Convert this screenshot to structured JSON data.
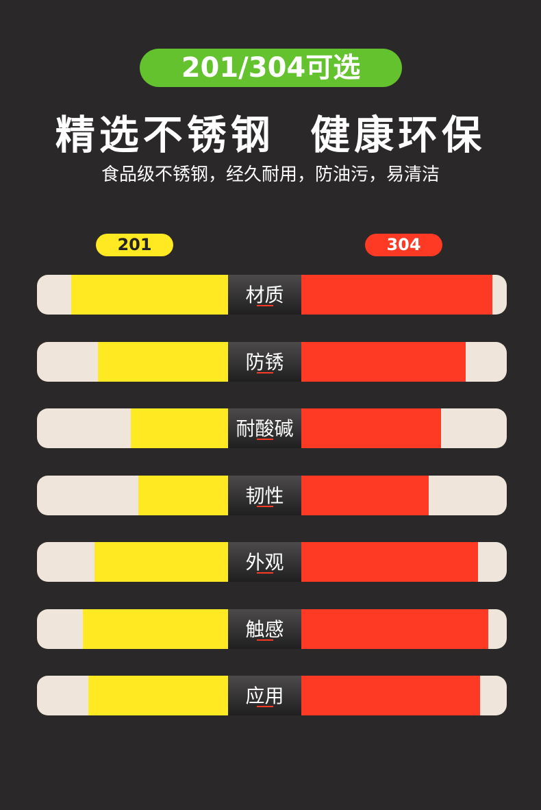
{
  "header": {
    "badge": "201/304可选",
    "title": "精选不锈钢  健康环保",
    "subtitle": "食品级不锈钢，经久耐用，防油污，易清洁"
  },
  "chart_data": {
    "type": "bar",
    "series": [
      {
        "name": "201",
        "color": "#ffe923",
        "values": [
          0.82,
          0.68,
          0.51,
          0.47,
          0.7,
          0.76,
          0.73
        ]
      },
      {
        "name": "304",
        "color": "#ff3a24",
        "values": [
          0.93,
          0.8,
          0.68,
          0.62,
          0.86,
          0.91,
          0.87
        ]
      }
    ],
    "categories": [
      "材质",
      "防锈",
      "耐酸碱",
      "韧性",
      "外观",
      "触感",
      "应用"
    ]
  }
}
